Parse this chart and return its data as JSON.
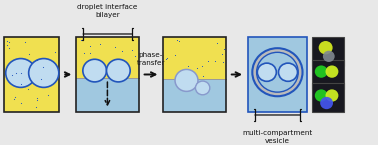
{
  "bg_color": "#e8e8e8",
  "yellow_color": "#f0e050",
  "blue_color": "#a0c8e0",
  "blue_fill": "#b8d8ee",
  "droplet_border": "#2255bb",
  "droplet_fill": "#c0dcf0",
  "arrow_color": "#111111",
  "text_color": "#111111",
  "box_border": "#222222",
  "gray_ring": "#bbbbbb",
  "gray_fill": "#d0d0d0",
  "label1": "droplet interface\nbilayer",
  "label2": "phase-\ntransfer",
  "label3": "multi-compartment\nvesicle",
  "fig_width": 3.78,
  "fig_height": 1.45,
  "dpi": 100,
  "xlim": [
    0,
    10.5
  ],
  "ylim": [
    0,
    3.85
  ]
}
